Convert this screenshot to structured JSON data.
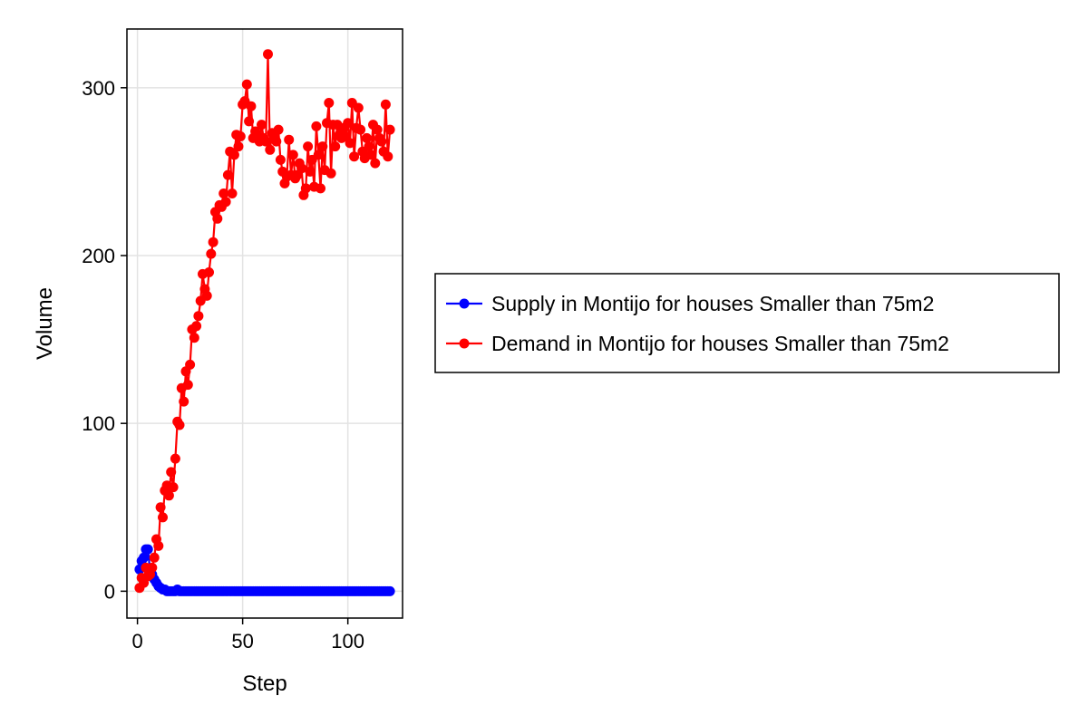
{
  "chart_data": {
    "type": "line",
    "title": "",
    "xlabel": "Step",
    "ylabel": "Volume",
    "xlim": [
      -5,
      126
    ],
    "ylim": [
      -16,
      335
    ],
    "xticks": [
      0,
      50,
      100
    ],
    "yticks": [
      0,
      100,
      200,
      300
    ],
    "grid": true,
    "legend_position": "right-center",
    "series": [
      {
        "name": "Supply in Montijo for houses Smaller than 75m2",
        "color": "#0000ff",
        "marker": "circle",
        "x": [
          1,
          2,
          3,
          4,
          5,
          6,
          7,
          8,
          9,
          10,
          11,
          12,
          13,
          14,
          15,
          16,
          17,
          18,
          19,
          20,
          21,
          22,
          23,
          24,
          25,
          26,
          27,
          28,
          29,
          30,
          31,
          32,
          33,
          34,
          35,
          36,
          37,
          38,
          39,
          40,
          41,
          42,
          43,
          44,
          45,
          46,
          47,
          48,
          49,
          50,
          51,
          52,
          53,
          54,
          55,
          56,
          57,
          58,
          59,
          60,
          61,
          62,
          63,
          64,
          65,
          66,
          67,
          68,
          69,
          70,
          71,
          72,
          73,
          74,
          75,
          76,
          77,
          78,
          79,
          80,
          81,
          82,
          83,
          84,
          85,
          86,
          87,
          88,
          89,
          90,
          91,
          92,
          93,
          94,
          95,
          96,
          97,
          98,
          99,
          100,
          101,
          102,
          103,
          104,
          105,
          106,
          107,
          108,
          109,
          110,
          111,
          112,
          113,
          114,
          115,
          116,
          117,
          118,
          119,
          120
        ],
        "y": [
          13,
          18,
          20,
          25,
          25,
          12,
          10,
          7,
          5,
          3,
          2,
          1,
          1,
          0,
          0,
          0,
          0,
          0,
          1,
          0,
          0,
          0,
          0,
          0,
          0,
          0,
          0,
          0,
          0,
          0,
          0,
          0,
          0,
          0,
          0,
          0,
          0,
          0,
          0,
          0,
          0,
          0,
          0,
          0,
          0,
          0,
          0,
          0,
          0,
          0,
          0,
          0,
          0,
          0,
          0,
          0,
          0,
          0,
          0,
          0,
          0,
          0,
          0,
          0,
          0,
          0,
          0,
          0,
          0,
          0,
          0,
          0,
          0,
          0,
          0,
          0,
          0,
          0,
          0,
          0,
          0,
          0,
          0,
          0,
          0,
          0,
          0,
          0,
          0,
          0,
          0,
          0,
          0,
          0,
          0,
          0,
          0,
          0,
          0,
          0,
          0,
          0,
          0,
          0,
          0,
          0,
          0,
          0,
          0,
          0,
          0,
          0,
          0,
          0,
          0,
          0,
          0,
          0,
          0,
          0
        ]
      },
      {
        "name": "Demand in Montijo for houses Smaller than 75m2",
        "color": "#ff0000",
        "marker": "circle",
        "x": [
          1,
          2,
          3,
          4,
          5,
          6,
          7,
          8,
          9,
          10,
          11,
          12,
          13,
          14,
          15,
          16,
          17,
          18,
          19,
          20,
          21,
          22,
          23,
          24,
          25,
          26,
          27,
          28,
          29,
          30,
          31,
          32,
          33,
          34,
          35,
          36,
          37,
          38,
          39,
          40,
          41,
          42,
          43,
          44,
          45,
          46,
          47,
          48,
          49,
          50,
          51,
          52,
          53,
          54,
          55,
          56,
          57,
          58,
          59,
          60,
          61,
          62,
          63,
          64,
          65,
          66,
          67,
          68,
          69,
          70,
          71,
          72,
          73,
          74,
          75,
          76,
          77,
          78,
          79,
          80,
          81,
          82,
          83,
          84,
          85,
          86,
          87,
          88,
          89,
          90,
          91,
          92,
          93,
          94,
          95,
          96,
          97,
          98,
          99,
          100,
          101,
          102,
          103,
          104,
          105,
          106,
          107,
          108,
          109,
          110,
          111,
          112,
          113,
          114,
          115,
          116,
          117,
          118,
          119,
          120
        ],
        "y": [
          2,
          8,
          5,
          14,
          9,
          10,
          14,
          20,
          31,
          27,
          50,
          44,
          60,
          63,
          57,
          71,
          62,
          79,
          101,
          99,
          121,
          113,
          131,
          123,
          135,
          156,
          151,
          158,
          164,
          173,
          189,
          180,
          176,
          190,
          201,
          208,
          226,
          222,
          230,
          229,
          237,
          232,
          248,
          262,
          237,
          260,
          272,
          265,
          271,
          290,
          292,
          302,
          280,
          289,
          270,
          274,
          272,
          268,
          278,
          270,
          268,
          320,
          263,
          273,
          270,
          268,
          275,
          257,
          250,
          243,
          247,
          269,
          248,
          260,
          246,
          248,
          255,
          252,
          236,
          240,
          265,
          250,
          257,
          241,
          277,
          260,
          240,
          265,
          251,
          279,
          291,
          249,
          278,
          265,
          278,
          272,
          270,
          276,
          271,
          279,
          267,
          291,
          259,
          276,
          288,
          275,
          262,
          258,
          270,
          265,
          260,
          278,
          255,
          275,
          270,
          268,
          262,
          290,
          259,
          275
        ]
      }
    ]
  }
}
